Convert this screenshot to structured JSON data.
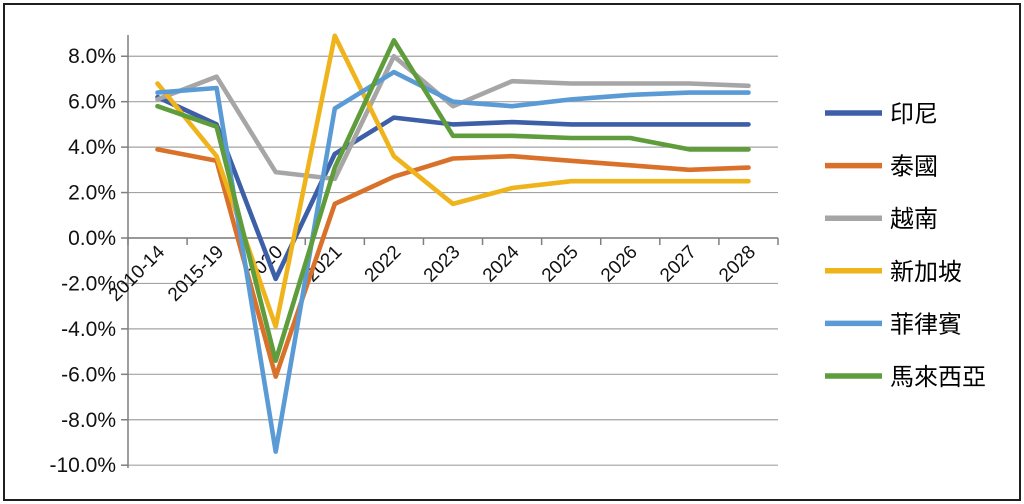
{
  "chart_data": {
    "type": "line",
    "title": "",
    "categories": [
      "2010-14",
      "2015-19",
      "2020",
      "2021",
      "2022",
      "2023",
      "2024",
      "2025",
      "2026",
      "2027",
      "2028"
    ],
    "series": [
      {
        "name": "印尼",
        "color": "#3D5FA8",
        "values": [
          6.2,
          5.0,
          -1.8,
          3.7,
          5.3,
          5.0,
          5.1,
          5.0,
          5.0,
          5.0,
          5.0
        ]
      },
      {
        "name": "泰國",
        "color": "#D9712A",
        "values": [
          3.9,
          3.4,
          -6.1,
          1.5,
          2.7,
          3.5,
          3.6,
          3.4,
          3.2,
          3.0,
          3.1
        ]
      },
      {
        "name": "越南",
        "color": "#A6A6A6",
        "values": [
          6.1,
          7.1,
          2.9,
          2.6,
          8.0,
          5.8,
          6.9,
          6.8,
          6.8,
          6.8,
          6.7
        ]
      },
      {
        "name": "新加坡",
        "color": "#EFB31C",
        "values": [
          6.8,
          3.6,
          -3.9,
          8.9,
          3.6,
          1.5,
          2.2,
          2.5,
          2.5,
          2.5,
          2.5
        ]
      },
      {
        "name": "菲律賓",
        "color": "#5B9BD5",
        "values": [
          6.4,
          6.6,
          -9.4,
          5.7,
          7.3,
          6.0,
          5.8,
          6.1,
          6.3,
          6.4,
          6.4
        ]
      },
      {
        "name": "馬來西亞",
        "color": "#5E9C3C",
        "values": [
          5.8,
          4.9,
          -5.4,
          3.1,
          8.7,
          4.5,
          4.5,
          4.4,
          4.4,
          3.9,
          3.9
        ]
      }
    ],
    "y_axis": {
      "min": -10,
      "max": 8,
      "step": 2
    },
    "y_tick_labels": [
      "8.0%",
      "6.0%",
      "4.0%",
      "2.0%",
      "0.0%",
      "-2.0%",
      "-4.0%",
      "-6.0%",
      "-8.0%",
      "-10.0%"
    ],
    "grid": true,
    "legend_position": "right"
  },
  "colors": {
    "background": "#FFFFFF",
    "grid": "#A3A3A3",
    "axis": "#7F7F7F",
    "tick_text": "#111111",
    "frame_border": "#1F1F1F"
  }
}
